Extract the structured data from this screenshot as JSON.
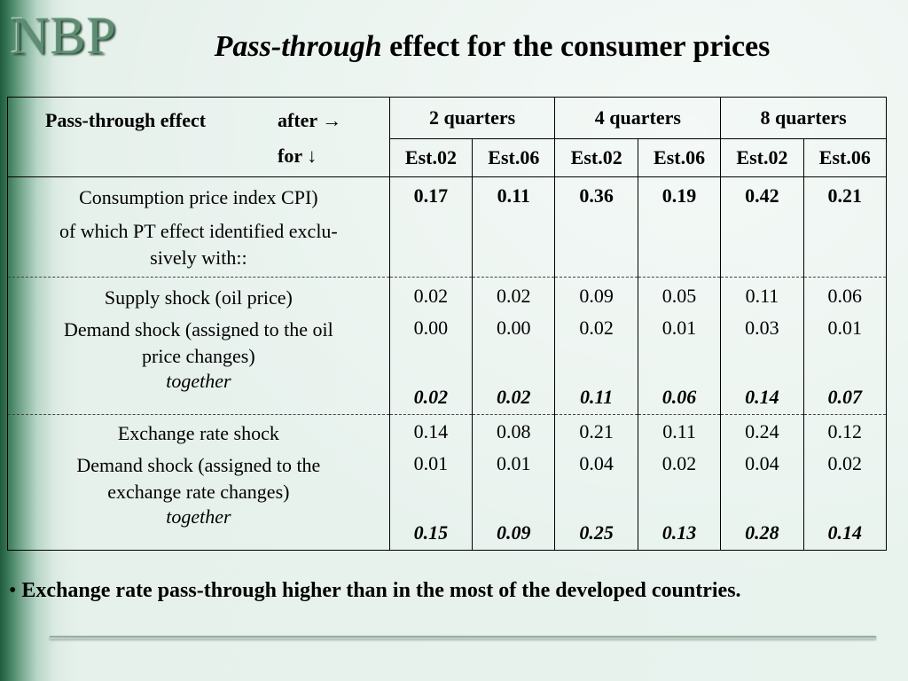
{
  "logo": "NBP",
  "title": {
    "italic": "Pass-through",
    "rest": " effect for the consumer prices"
  },
  "header": {
    "row_label": "Pass-through effect",
    "after_label": "after →",
    "for_label": "for ↓",
    "quarters": [
      "2 quarters",
      "4 quarters",
      "8 quarters"
    ],
    "estimates": [
      "Est.02",
      "Est.06",
      "Est.02",
      "Est.06",
      "Est.02",
      "Est.06"
    ]
  },
  "cpi": {
    "label": "Consumption price index CPI)",
    "sublabel_1": "of  which  PT effect identified exclu-",
    "sublabel_2": "sively with::",
    "values": [
      "0.17",
      "0.11",
      "0.36",
      "0.19",
      "0.42",
      "0.21"
    ]
  },
  "oil": {
    "supply_label": "Supply shock (oil price)",
    "supply_values": [
      "0.02",
      "0.02",
      "0.09",
      "0.05",
      "0.11",
      "0.06"
    ],
    "demand_label_1": "Demand shock (assigned to the oil",
    "demand_label_2": "price changes)",
    "demand_values": [
      "0.00",
      "0.00",
      "0.02",
      "0.01",
      "0.03",
      "0.01"
    ],
    "together_label": "together",
    "together_values": [
      "0.02",
      "0.02",
      "0.11",
      "0.06",
      "0.14",
      "0.07"
    ]
  },
  "fx": {
    "shock_label": "Exchange rate shock",
    "shock_values": [
      "0.14",
      "0.08",
      "0.21",
      "0.11",
      "0.24",
      "0.12"
    ],
    "demand_label_1": "Demand shock (assigned to the",
    "demand_label_2": "exchange rate changes)",
    "demand_values": [
      "0.01",
      "0.01",
      "0.04",
      "0.02",
      "0.04",
      "0.02"
    ],
    "together_label": "together",
    "together_values": [
      "0.15",
      "0.09",
      "0.25",
      "0.13",
      "0.28",
      "0.14"
    ]
  },
  "bullet": {
    "symbol": "•",
    "text": "Exchange rate pass-through higher than in the most of the developed countries."
  }
}
